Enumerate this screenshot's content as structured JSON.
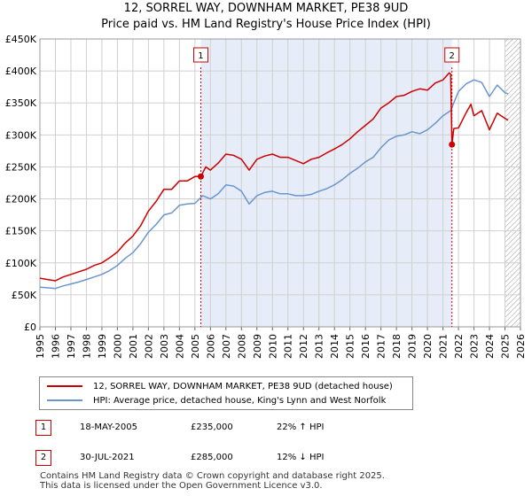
{
  "header": {
    "title": "12, SORREL WAY, DOWNHAM MARKET, PE38 9UD",
    "subtitle": "Price paid vs. HM Land Registry's House Price Index (HPI)"
  },
  "colors": {
    "property": "#cc0000",
    "hpi": "#6a96cc",
    "shade": "#e6edf8",
    "marker": "#cc0000"
  },
  "chart_data": {
    "type": "line",
    "title": "12, SORREL WAY, DOWNHAM MARKET, PE38 9UD",
    "subtitle": "Price paid vs. HM Land Registry's House Price Index (HPI)",
    "xlabel": "",
    "ylabel": "",
    "xlim": [
      1995,
      2026
    ],
    "ylim": [
      0,
      450000
    ],
    "yticks": [
      0,
      50000,
      100000,
      150000,
      200000,
      250000,
      300000,
      350000,
      400000,
      450000
    ],
    "ytick_labels": [
      "£0",
      "£50K",
      "£100K",
      "£150K",
      "£200K",
      "£250K",
      "£300K",
      "£350K",
      "£400K",
      "£450K"
    ],
    "xticks": [
      1995,
      1996,
      1997,
      1998,
      1999,
      2000,
      2001,
      2002,
      2003,
      2004,
      2005,
      2006,
      2007,
      2008,
      2009,
      2010,
      2011,
      2012,
      2013,
      2014,
      2015,
      2016,
      2017,
      2018,
      2019,
      2020,
      2021,
      2022,
      2023,
      2024,
      2025,
      2026
    ],
    "grid": true,
    "shaded_region": [
      2005.38,
      2021.58
    ],
    "hatched_from": 2025.0,
    "series": [
      {
        "name": "12, SORREL WAY, DOWNHAM MARKET, PE38 9UD (detached house)",
        "x": [
          1995.0,
          1995.5,
          1996.0,
          1996.5,
          1997.0,
          1997.5,
          1998.0,
          1998.5,
          1999.0,
          1999.5,
          2000.0,
          2000.5,
          2001.0,
          2001.5,
          2002.0,
          2002.5,
          2003.0,
          2003.5,
          2004.0,
          2004.5,
          2005.0,
          2005.38,
          2005.7,
          2006.0,
          2006.5,
          2007.0,
          2007.5,
          2008.0,
          2008.5,
          2009.0,
          2009.5,
          2010.0,
          2010.5,
          2011.0,
          2011.5,
          2012.0,
          2012.5,
          2013.0,
          2013.5,
          2014.0,
          2014.5,
          2015.0,
          2015.5,
          2016.0,
          2016.5,
          2017.0,
          2017.5,
          2018.0,
          2018.5,
          2019.0,
          2019.5,
          2020.0,
          2020.5,
          2021.0,
          2021.4,
          2021.5,
          2021.58,
          2021.7,
          2022.0,
          2022.5,
          2022.8,
          2023.0,
          2023.5,
          2024.0,
          2024.5,
          2025.0,
          2025.2
        ],
        "values": [
          76000,
          74000,
          72000,
          78000,
          82000,
          86000,
          90000,
          96000,
          100000,
          108000,
          117000,
          131000,
          142000,
          158000,
          181000,
          196000,
          215000,
          215000,
          228000,
          228000,
          235000,
          235000,
          250000,
          245000,
          256000,
          270000,
          268000,
          262000,
          245000,
          262000,
          267000,
          270000,
          265000,
          265000,
          260000,
          255000,
          262000,
          265000,
          272000,
          278000,
          285000,
          294000,
          305000,
          315000,
          325000,
          342000,
          350000,
          360000,
          362000,
          368000,
          372000,
          370000,
          381000,
          386000,
          397000,
          395000,
          285000,
          310000,
          311000,
          335000,
          348000,
          330000,
          338000,
          308000,
          334000,
          326000,
          323000
        ]
      },
      {
        "name": "HPI: Average price, detached house, King's Lynn and West Norfolk",
        "x": [
          1995.0,
          1995.5,
          1996.0,
          1996.5,
          1997.0,
          1997.5,
          1998.0,
          1998.5,
          1999.0,
          1999.5,
          2000.0,
          2000.5,
          2001.0,
          2001.5,
          2002.0,
          2002.5,
          2003.0,
          2003.5,
          2004.0,
          2004.5,
          2005.0,
          2005.5,
          2006.0,
          2006.5,
          2007.0,
          2007.5,
          2008.0,
          2008.5,
          2009.0,
          2009.5,
          2010.0,
          2010.5,
          2011.0,
          2011.5,
          2012.0,
          2012.5,
          2013.0,
          2013.5,
          2014.0,
          2014.5,
          2015.0,
          2015.5,
          2016.0,
          2016.5,
          2017.0,
          2017.5,
          2018.0,
          2018.5,
          2019.0,
          2019.5,
          2020.0,
          2020.5,
          2021.0,
          2021.5,
          2022.0,
          2022.5,
          2023.0,
          2023.5,
          2024.0,
          2024.5,
          2025.0,
          2025.2
        ],
        "values": [
          62000,
          61000,
          60000,
          64000,
          67000,
          70000,
          74000,
          78000,
          82000,
          88000,
          96000,
          107000,
          116000,
          130000,
          148000,
          160000,
          175000,
          178000,
          190000,
          192000,
          193000,
          205000,
          200000,
          208000,
          222000,
          220000,
          212000,
          192000,
          205000,
          210000,
          212000,
          208000,
          208000,
          205000,
          205000,
          207000,
          212000,
          216000,
          222000,
          230000,
          240000,
          248000,
          258000,
          265000,
          280000,
          292000,
          298000,
          300000,
          305000,
          302000,
          308000,
          318000,
          330000,
          338000,
          368000,
          380000,
          386000,
          382000,
          360000,
          378000,
          366000,
          364000
        ]
      }
    ],
    "annotations": [
      {
        "label": "1",
        "x": 2005.38,
        "value": 235000
      },
      {
        "label": "2",
        "x": 2021.58,
        "value": 285000
      }
    ]
  },
  "legend": {
    "property_label": "12, SORREL WAY, DOWNHAM MARKET, PE38 9UD (detached house)",
    "hpi_label": "HPI: Average price, detached house, King's Lynn and West Norfolk"
  },
  "sales": [
    {
      "num": "1",
      "date": "18-MAY-2005",
      "price": "£235,000",
      "hpi_diff": "22% ↑ HPI"
    },
    {
      "num": "2",
      "date": "30-JUL-2021",
      "price": "£285,000",
      "hpi_diff": "12% ↓ HPI"
    }
  ],
  "footer": {
    "line1": "Contains HM Land Registry data © Crown copyright and database right 2025.",
    "line2": "This data is licensed under the Open Government Licence v3.0."
  }
}
